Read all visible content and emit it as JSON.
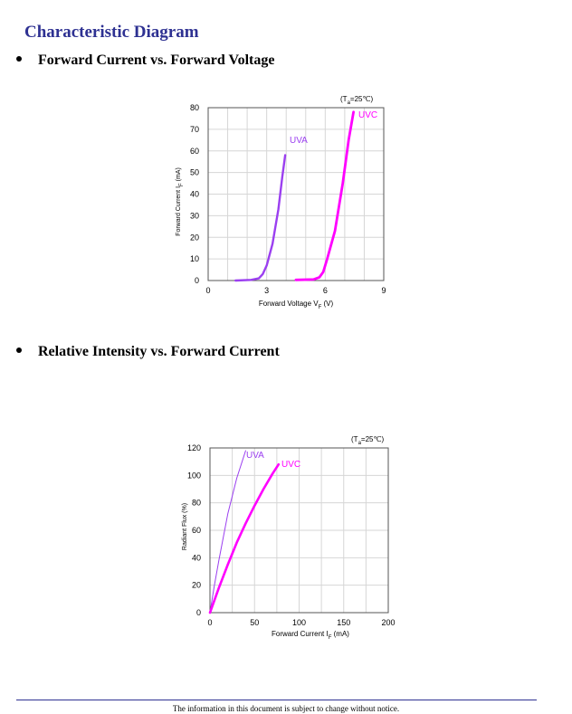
{
  "page": {
    "title": "Characteristic Diagram",
    "footer": "The information in this document is subject to change without notice."
  },
  "sections": [
    {
      "heading": "Forward Current vs. Forward Voltage"
    },
    {
      "heading": "Relative Intensity vs. Forward Current"
    }
  ],
  "chart_data": [
    {
      "type": "line",
      "xlabel_main": "Forward Voltage V",
      "xlabel_sub": "F",
      "xlabel_unit": " (V)",
      "ylabel_main": "Forward Current I",
      "ylabel_sub": "F",
      "ylabel_unit": " (mA)",
      "condition_main": "(T",
      "condition_sub": "a",
      "condition_rest": "=25℃)",
      "xlim": [
        0,
        9
      ],
      "ylim": [
        0,
        80
      ],
      "xticks": [
        0,
        3,
        6,
        9
      ],
      "yticks": [
        0,
        10,
        20,
        30,
        40,
        50,
        60,
        70,
        80
      ],
      "grid": true,
      "series": [
        {
          "name": "UVA",
          "color": "#9b3ff0",
          "x": [
            1.4,
            2.2,
            2.6,
            2.8,
            3.0,
            3.3,
            3.6,
            3.8,
            3.95
          ],
          "y": [
            0,
            0.3,
            1,
            3,
            7,
            17,
            33,
            48,
            58
          ]
        },
        {
          "name": "UVC",
          "color": "#ff00ff",
          "x": [
            4.5,
            5.4,
            5.7,
            5.9,
            6.1,
            6.5,
            6.9,
            7.2,
            7.45
          ],
          "y": [
            0.3,
            0.5,
            1.5,
            4,
            10,
            23,
            45,
            65,
            78
          ]
        }
      ]
    },
    {
      "type": "line",
      "xlabel_main": "Forward Current I",
      "xlabel_sub": "F",
      "xlabel_unit": " (mA)",
      "ylabel_main": "Radiant Flux (%)",
      "condition_main": "(T",
      "condition_sub": "a",
      "condition_rest": "=25℃)",
      "xlim": [
        0,
        200
      ],
      "ylim": [
        0,
        120
      ],
      "xticks": [
        0,
        50,
        100,
        150,
        200
      ],
      "yticks": [
        0,
        20,
        40,
        60,
        80,
        100,
        120
      ],
      "grid": true,
      "series": [
        {
          "name": "UVA",
          "color": "#9b3ff0",
          "x": [
            0,
            5,
            10,
            20,
            30,
            40
          ],
          "y": [
            0,
            20,
            38,
            72,
            98,
            118
          ]
        },
        {
          "name": "UVC",
          "color": "#ff00ff",
          "x": [
            0,
            10,
            20,
            30,
            40,
            50,
            60,
            70,
            77
          ],
          "y": [
            0,
            18,
            35,
            51,
            65,
            78,
            90,
            101,
            108
          ]
        }
      ]
    }
  ]
}
